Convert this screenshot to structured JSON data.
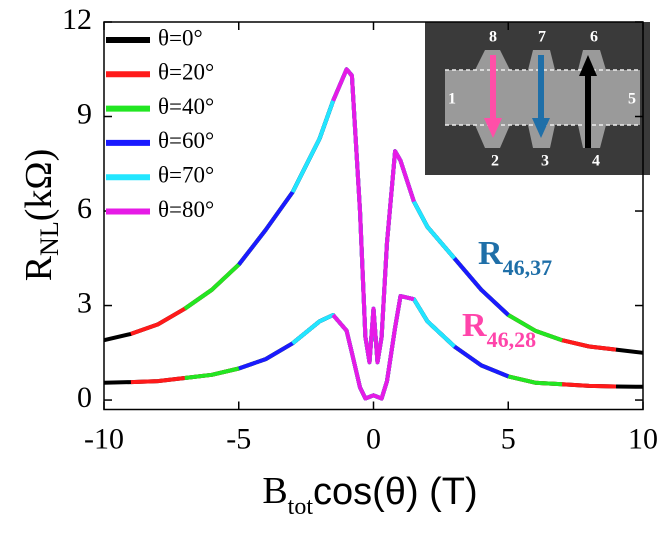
{
  "chart_data": {
    "type": "line",
    "ylabel": {
      "main": "R",
      "sub": "NL",
      "rest": "(kΩ)"
    },
    "xlabel": {
      "main": "B",
      "sub": "tot",
      "rest": "cos(θ) (T)"
    },
    "xlim": [
      -10,
      10
    ],
    "ylim": [
      -0.3,
      12
    ],
    "xticks": [
      -10,
      -5,
      0,
      5,
      10
    ],
    "yticks": [
      0,
      3,
      6,
      9,
      12
    ],
    "legend": "upper left",
    "x": [
      -10,
      -9,
      -8,
      -7,
      -6,
      -5,
      -4,
      -3,
      -2,
      -1.5,
      -1,
      -0.8,
      -0.5,
      -0.3,
      -0.15,
      0,
      0.15,
      0.3,
      0.5,
      0.8,
      1,
      1.5,
      2,
      3,
      4,
      5,
      6,
      7,
      8,
      9,
      10
    ],
    "series": [
      {
        "name": "θ=0°",
        "color": "#000000",
        "values": [
          1.9,
          2.1,
          2.4,
          2.9,
          3.5,
          4.3,
          5.4,
          6.6,
          8.3,
          9.5,
          10.5,
          10.3,
          6,
          2,
          1.2,
          2.9,
          1.2,
          2,
          5,
          7.9,
          7.6,
          6.3,
          5.5,
          4.5,
          3.5,
          2.7,
          2.2,
          1.9,
          1.7,
          1.6,
          1.5
        ],
        "lower": [
          0.55,
          0.57,
          0.6,
          0.7,
          0.8,
          1,
          1.3,
          1.8,
          2.5,
          2.7,
          2.2,
          1.5,
          0.4,
          0.05,
          0.1,
          0.15,
          0.1,
          0.05,
          0.6,
          2.3,
          3.3,
          3.2,
          2.5,
          1.7,
          1.1,
          0.75,
          0.55,
          0.5,
          0.45,
          0.43,
          0.42
        ]
      },
      {
        "name": "θ=20°",
        "color": "#ff1a1a",
        "values": [
          null,
          2.1,
          2.4,
          2.9,
          3.5,
          4.3,
          5.4,
          6.6,
          8.3,
          9.5,
          10.5,
          10.3,
          6,
          2,
          1.2,
          2.9,
          1.2,
          2,
          5,
          7.9,
          7.6,
          6.3,
          5.5,
          4.5,
          3.5,
          2.7,
          2.2,
          1.9,
          1.7,
          1.6,
          null
        ],
        "lower": [
          null,
          0.57,
          0.6,
          0.7,
          0.8,
          1,
          1.3,
          1.8,
          2.5,
          2.7,
          2.2,
          1.5,
          0.4,
          0.05,
          0.1,
          0.15,
          0.1,
          0.05,
          0.6,
          2.3,
          3.3,
          3.2,
          2.5,
          1.7,
          1.1,
          0.75,
          0.55,
          0.5,
          0.45,
          0.43,
          null
        ]
      },
      {
        "name": "θ=40°",
        "color": "#22e622",
        "values": [
          null,
          null,
          null,
          2.9,
          3.5,
          4.3,
          5.4,
          6.6,
          8.3,
          9.5,
          10.5,
          10.3,
          6,
          2,
          1.2,
          2.9,
          1.2,
          2,
          5,
          7.9,
          7.6,
          6.3,
          5.5,
          4.5,
          3.5,
          2.7,
          2.2,
          1.9,
          null,
          null,
          null
        ],
        "lower": [
          null,
          null,
          null,
          0.7,
          0.8,
          1,
          1.3,
          1.8,
          2.5,
          2.7,
          2.2,
          1.5,
          0.4,
          0.05,
          0.1,
          0.15,
          0.1,
          0.05,
          0.6,
          2.3,
          3.3,
          3.2,
          2.5,
          1.7,
          1.1,
          0.75,
          0.55,
          0.5,
          null,
          null,
          null
        ]
      },
      {
        "name": "θ=60°",
        "color": "#1a1aff",
        "values": [
          null,
          null,
          null,
          null,
          null,
          4.3,
          5.4,
          6.6,
          8.3,
          9.5,
          10.5,
          10.3,
          6,
          2,
          1.2,
          2.9,
          1.2,
          2,
          5,
          7.9,
          7.6,
          6.3,
          5.5,
          4.5,
          3.5,
          2.7,
          null,
          null,
          null,
          null,
          null
        ],
        "lower": [
          null,
          null,
          null,
          null,
          null,
          1,
          1.3,
          1.8,
          2.5,
          2.7,
          2.2,
          1.5,
          0.4,
          0.05,
          0.1,
          0.15,
          0.1,
          0.05,
          0.6,
          2.3,
          3.3,
          3.2,
          2.5,
          1.7,
          1.1,
          0.75,
          null,
          null,
          null,
          null,
          null
        ]
      },
      {
        "name": "θ=70°",
        "color": "#22e6ff",
        "values": [
          null,
          null,
          null,
          null,
          null,
          null,
          null,
          6.6,
          8.3,
          9.5,
          10.5,
          10.3,
          6,
          2,
          1.2,
          2.9,
          1.2,
          2,
          5,
          7.9,
          7.6,
          6.3,
          5.5,
          4.5,
          null,
          null,
          null,
          null,
          null,
          null,
          null
        ],
        "lower": [
          null,
          null,
          null,
          null,
          null,
          null,
          null,
          1.8,
          2.5,
          2.7,
          2.2,
          1.5,
          0.4,
          0.05,
          0.1,
          0.15,
          0.1,
          0.05,
          0.6,
          2.3,
          3.3,
          3.2,
          2.5,
          1.7,
          null,
          null,
          null,
          null,
          null,
          null,
          null
        ]
      },
      {
        "name": "θ=80°",
        "color": "#e61ae6",
        "values": [
          null,
          null,
          null,
          null,
          null,
          null,
          null,
          null,
          null,
          9.5,
          10.5,
          10.3,
          6,
          2,
          1.2,
          2.9,
          1.2,
          2,
          5,
          7.9,
          7.6,
          6.3,
          null,
          null,
          null,
          null,
          null,
          null,
          null,
          null,
          null
        ],
        "lower": [
          null,
          null,
          null,
          null,
          null,
          null,
          null,
          null,
          null,
          2.7,
          2.2,
          1.5,
          0.4,
          0.05,
          0.1,
          0.15,
          0.1,
          0.05,
          0.6,
          2.3,
          3.3,
          3.2,
          null,
          null,
          null,
          null,
          null,
          null,
          null,
          null,
          null
        ]
      }
    ],
    "annotations": [
      {
        "text": "R",
        "sub": "46,37",
        "color": "#1f6fa8"
      },
      {
        "text": "R",
        "sub": "46,28",
        "color": "#ff44aa"
      }
    ],
    "inset": {
      "labels": [
        "8",
        "7",
        "6",
        "1",
        "5",
        "2",
        "3",
        "4"
      ]
    }
  }
}
